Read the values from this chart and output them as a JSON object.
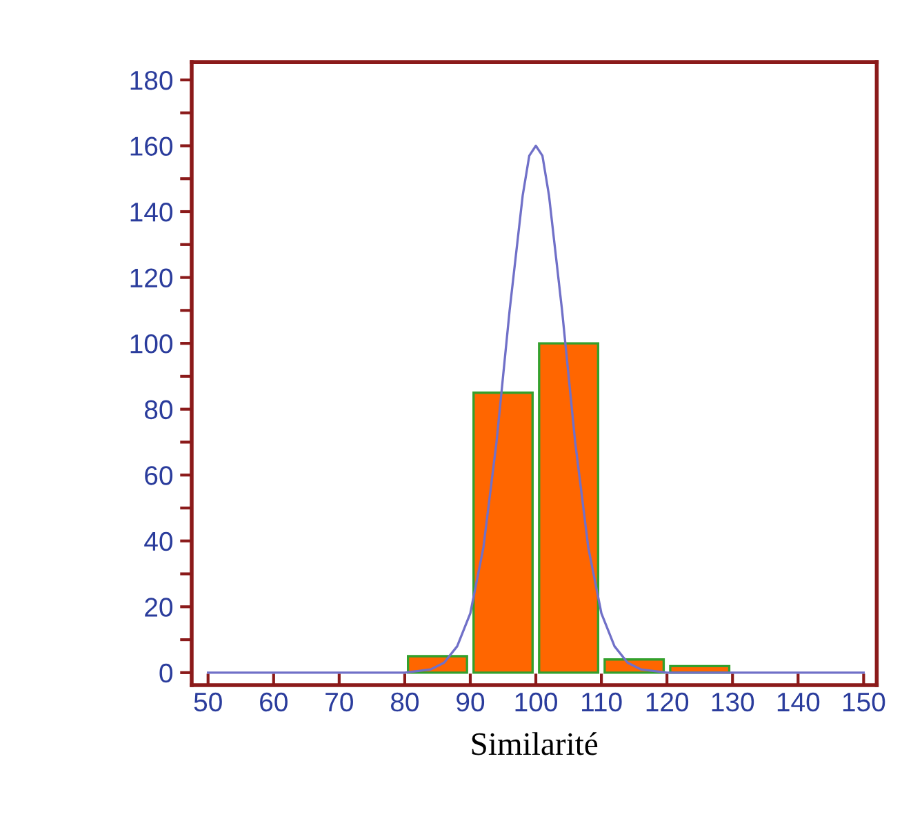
{
  "chart_data": {
    "type": "histogram",
    "xlabel": "Similarité",
    "xlim": [
      47.5,
      152
    ],
    "ylim": [
      -3.8,
      185.4
    ],
    "xticks": [
      50,
      60,
      70,
      80,
      90,
      100,
      110,
      120,
      130,
      140,
      150
    ],
    "yticks": [
      0,
      {
        "value": 10,
        "label": null
      },
      20,
      {
        "value": 30,
        "label": null
      },
      40,
      {
        "value": 50,
        "label": null
      },
      60,
      {
        "value": 70,
        "label": null
      },
      80,
      {
        "value": 90,
        "label": null
      },
      100,
      {
        "value": 110,
        "label": null
      },
      120,
      {
        "value": 130,
        "label": null
      },
      140,
      {
        "value": 150,
        "label": null
      },
      160,
      {
        "value": 170,
        "label": null
      },
      180
    ],
    "grid": false,
    "legend": false,
    "series": [
      {
        "color": "#ff6600",
        "bins": [
          50,
          60,
          70,
          80,
          90,
          100,
          110,
          120,
          130,
          140,
          150
        ],
        "values": [
          0,
          0,
          0,
          5,
          85,
          100,
          4,
          2,
          0,
          0
        ]
      },
      {
        "type": "line",
        "color": "#7070c8",
        "x": [
          50,
          80,
          84,
          86,
          88,
          90,
          92,
          94,
          95,
          96,
          98,
          99,
          100,
          101,
          102,
          104,
          105,
          106,
          108,
          110,
          112,
          114,
          116,
          120,
          130,
          150
        ],
        "values": [
          0,
          0,
          1,
          3,
          8,
          18,
          38,
          70,
          90,
          110,
          145,
          157,
          160,
          157,
          145,
          110,
          90,
          70,
          38,
          18,
          8,
          3,
          1,
          0,
          0,
          0
        ]
      }
    ]
  }
}
